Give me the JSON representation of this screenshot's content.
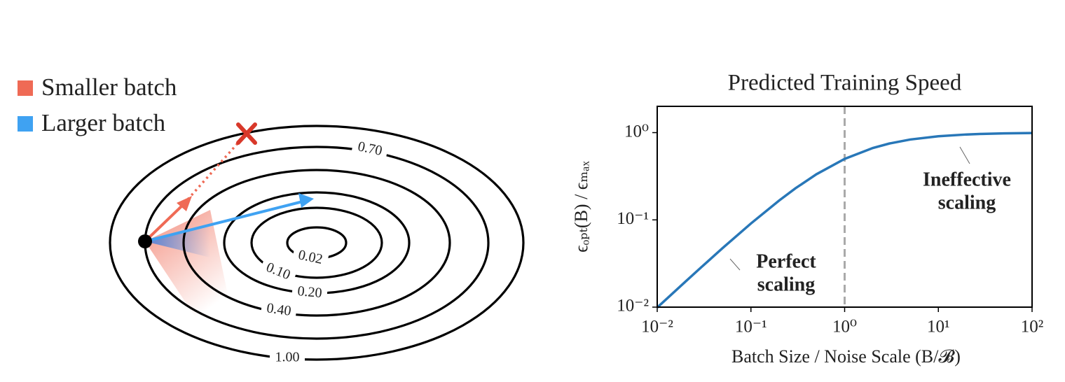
{
  "diagram": {
    "legend": [
      {
        "name": "Smaller batch",
        "color": "#ef6a55"
      },
      {
        "name": "Larger batch",
        "color": "#3fa2f2"
      }
    ],
    "contours": [
      {
        "label": "1.00"
      },
      {
        "label": "0.70"
      },
      {
        "label": "0.40"
      },
      {
        "label": "0.20"
      },
      {
        "label": "0.10"
      },
      {
        "label": "0.02"
      }
    ]
  },
  "chart_data": {
    "type": "line",
    "title": "Predicted Training Speed",
    "x_label": "Batch Size / Noise Scale   (B/𝓑)",
    "y_label": "ϵₒₚₜ(B) / ϵₘₐₓ",
    "xscale": "log",
    "yscale": "log",
    "color": "#2877b8",
    "x": [
      0.01,
      0.02,
      0.03,
      0.05,
      0.1,
      0.2,
      0.3,
      0.5,
      1,
      2,
      3,
      5,
      10,
      20,
      30,
      50,
      100
    ],
    "values": [
      0.0099,
      0.0196,
      0.0291,
      0.0476,
      0.0909,
      0.1667,
      0.2308,
      0.3333,
      0.5,
      0.6667,
      0.75,
      0.8333,
      0.9091,
      0.9524,
      0.9677,
      0.9804,
      0.9901
    ],
    "xlim": [
      0.01,
      100
    ],
    "ylim": [
      0.01,
      2
    ],
    "xticks": [
      {
        "value": 0.01,
        "label": "10⁻²"
      },
      {
        "value": 0.1,
        "label": "10⁻¹"
      },
      {
        "value": 1,
        "label": "10⁰"
      },
      {
        "value": 10,
        "label": "10¹"
      },
      {
        "value": 100,
        "label": "10²"
      }
    ],
    "yticks": [
      {
        "value": 0.01,
        "label": "10⁻²"
      },
      {
        "value": 0.1,
        "label": "10⁻¹"
      },
      {
        "value": 1,
        "label": "10⁰"
      }
    ],
    "vline": 1,
    "annotations": [
      {
        "lines": [
          "Perfect",
          "scaling"
        ]
      },
      {
        "lines": [
          "Ineffective",
          "scaling"
        ]
      }
    ]
  }
}
